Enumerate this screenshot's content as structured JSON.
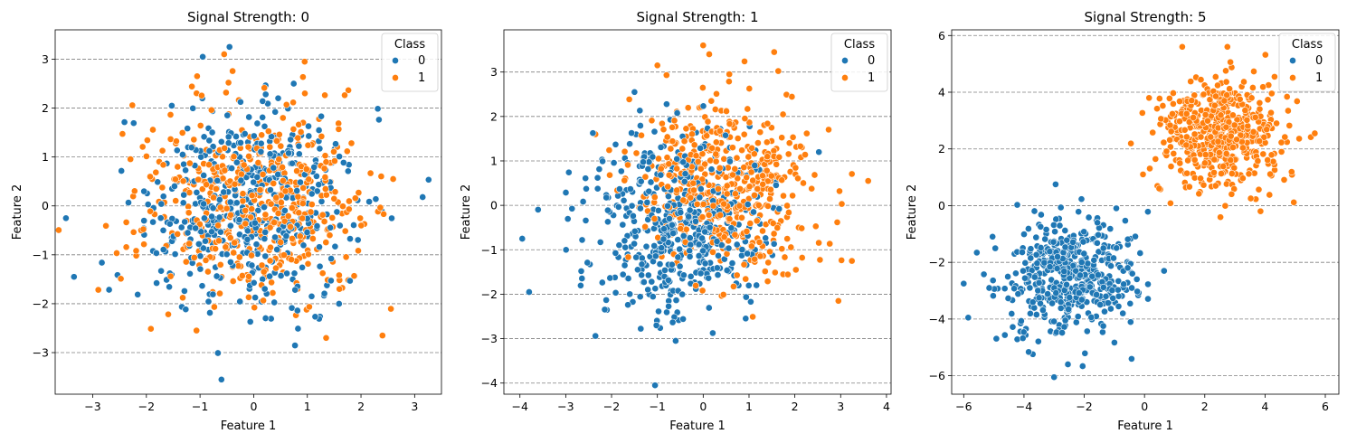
{
  "figure": {
    "background": "#ffffff"
  },
  "legend": {
    "title": "Class",
    "entries": [
      {
        "label": "0",
        "color": "#1f77b4"
      },
      {
        "label": "1",
        "color": "#ff7f0e"
      }
    ]
  },
  "chart_data": [
    {
      "type": "scatter",
      "title": "Signal Strength: 0",
      "xlabel": "Feature 1",
      "ylabel": "Feature 2",
      "xlim": [
        -3.7,
        3.5
      ],
      "ylim": [
        -3.85,
        3.6
      ],
      "xticks": [
        -3,
        -2,
        -1,
        0,
        1,
        2,
        3
      ],
      "yticks": [
        -3,
        -2,
        -1,
        0,
        1,
        2,
        3
      ],
      "grid": "horizontal dashed",
      "legend_position": "top-right",
      "series": [
        {
          "name": "0",
          "center": [
            0.0,
            0.0
          ],
          "std": 1.0,
          "n": 500,
          "seed": 11,
          "extreme_points": [
            [
              -0.6,
              -3.55
            ],
            [
              -3.5,
              -0.25
            ],
            [
              -3.35,
              -1.45
            ],
            [
              -0.45,
              3.25
            ],
            [
              3.15,
              0.18
            ],
            [
              -0.95,
              3.05
            ]
          ]
        },
        {
          "name": "1",
          "center": [
            0.0,
            0.0
          ],
          "std": 1.0,
          "n": 500,
          "seed": 23,
          "extreme_points": [
            [
              2.4,
              -2.65
            ],
            [
              1.35,
              -2.7
            ],
            [
              -0.55,
              3.1
            ],
            [
              0.95,
              2.95
            ],
            [
              2.6,
              0.55
            ]
          ]
        }
      ]
    },
    {
      "type": "scatter",
      "title": "Signal Strength: 1",
      "xlabel": "Feature 1",
      "ylabel": "Feature 2",
      "xlim": [
        -4.35,
        4.1
      ],
      "ylim": [
        -4.25,
        3.95
      ],
      "xticks": [
        -4,
        -3,
        -2,
        -1,
        0,
        1,
        2,
        3,
        4
      ],
      "yticks": [
        -4,
        -3,
        -2,
        -1,
        0,
        1,
        2,
        3
      ],
      "grid": "horizontal dashed",
      "legend_position": "top-right",
      "series": [
        {
          "name": "0",
          "center": [
            -0.5,
            -0.5
          ],
          "std": 1.0,
          "n": 500,
          "seed": 37,
          "extreme_points": [
            [
              -1.05,
              -4.05
            ],
            [
              -3.95,
              -0.75
            ],
            [
              -3.8,
              -1.95
            ],
            [
              -0.6,
              -3.05
            ],
            [
              -1.5,
              2.55
            ]
          ]
        },
        {
          "name": "1",
          "center": [
            0.5,
            0.5
          ],
          "std": 1.0,
          "n": 500,
          "seed": 53,
          "extreme_points": [
            [
              0.0,
              3.6
            ],
            [
              3.6,
              0.55
            ],
            [
              1.55,
              3.45
            ],
            [
              2.95,
              -2.15
            ],
            [
              -1.0,
              3.15
            ]
          ]
        }
      ]
    },
    {
      "type": "scatter",
      "title": "Signal Strength: 5",
      "xlabel": "Feature 1",
      "ylabel": "Feature 2",
      "xlim": [
        -6.4,
        6.45
      ],
      "ylim": [
        -6.65,
        6.2
      ],
      "xticks": [
        -6,
        -4,
        -2,
        0,
        2,
        4,
        6
      ],
      "yticks": [
        -6,
        -4,
        -2,
        0,
        2,
        4,
        6
      ],
      "grid": "horizontal dashed",
      "legend_position": "top-right",
      "series": [
        {
          "name": "0",
          "center": [
            -2.5,
            -2.5
          ],
          "std": 1.0,
          "n": 500,
          "seed": 71,
          "extreme_points": [
            [
              -3.0,
              -6.05
            ],
            [
              -6.0,
              -2.75
            ],
            [
              -5.85,
              -3.95
            ],
            [
              -2.95,
              0.75
            ],
            [
              0.65,
              -2.3
            ]
          ]
        },
        {
          "name": "1",
          "center": [
            2.5,
            2.5
          ],
          "std": 1.0,
          "n": 500,
          "seed": 97,
          "extreme_points": [
            [
              2.75,
              5.6
            ],
            [
              5.65,
              2.55
            ],
            [
              -0.05,
              1.1
            ],
            [
              3.85,
              -0.2
            ],
            [
              0.15,
              3.8
            ]
          ]
        }
      ]
    }
  ]
}
